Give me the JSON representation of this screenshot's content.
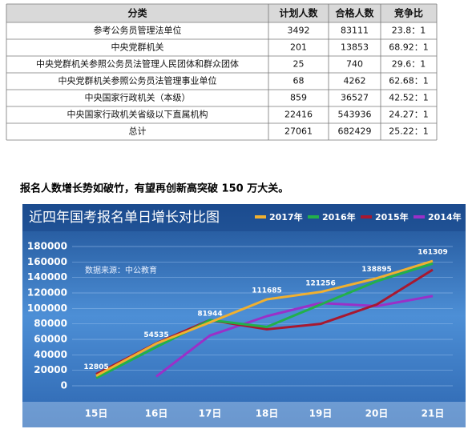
{
  "table": {
    "header": [
      "分类",
      "计划人数",
      "合格人数",
      "竞争比"
    ],
    "rows": [
      [
        "参考公务员管理法单位",
        3492,
        83111,
        "23.8：1"
      ],
      [
        "中央党群机关",
        201,
        13853,
        "68.92：1"
      ],
      [
        "中央党群机关参照公务员法管理人民团体和群众团体",
        25,
        740,
        "29.6：1"
      ],
      [
        "中央党群机关参照公务员法管理事业单位",
        68,
        4262,
        "62.68：1"
      ],
      [
        "中央国家行政机关（本级）",
        859,
        36527,
        "42.52：1"
      ],
      [
        "中央国家行政机关省级以下直属机构",
        22416,
        543936,
        "24.27：1"
      ],
      [
        "总计",
        27061,
        682429,
        "25.22：1"
      ]
    ]
  },
  "paragraph": "报名人数增长势如破竹，有望再创新高突破 150 万大关。",
  "chart_data": {
    "type": "line",
    "title": "近四年国考报名单日增长对比图",
    "annotation": "数据来源：中公教育",
    "categories": [
      "15日",
      "16日",
      "17日",
      "18日",
      "19日",
      "20日",
      "21日"
    ],
    "series": [
      {
        "name": "2017年",
        "color": "#f0b030",
        "data_labels": true,
        "values": [
          12805,
          54535,
          81944,
          111685,
          121256,
          138895,
          161309
        ]
      },
      {
        "name": "2016年",
        "color": "#22b04a",
        "values": [
          10000,
          50000,
          85000,
          76000,
          105000,
          135000,
          158000
        ]
      },
      {
        "name": "2015年",
        "color": "#a81830",
        "values": [
          15000,
          55000,
          85000,
          73000,
          80000,
          105000,
          150000
        ]
      },
      {
        "name": "2014年",
        "color": "#9a30c8",
        "values": [
          null,
          12000,
          65000,
          90000,
          107000,
          103000,
          116000
        ]
      }
    ],
    "ylim": [
      0,
      180000
    ],
    "yticks": [
      0,
      20000,
      40000,
      60000,
      80000,
      100000,
      120000,
      140000,
      160000,
      180000
    ],
    "grid": true
  }
}
